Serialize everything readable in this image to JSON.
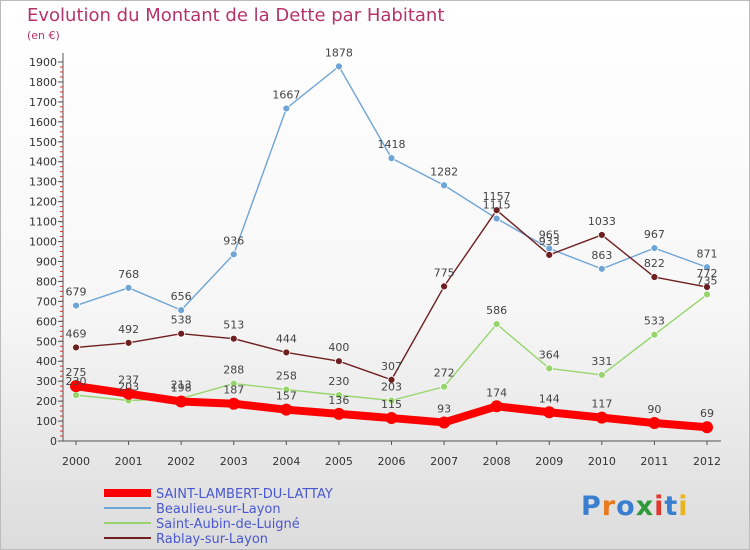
{
  "header": {
    "title": "Evolution du Montant de la Dette par Habitant",
    "unit": "(en €)"
  },
  "logo": {
    "text": "Proxiti"
  },
  "chart_data": {
    "type": "line",
    "title": "Evolution du Montant de la Dette par Habitant",
    "subtitle": "(en €)",
    "xlabel": "",
    "ylabel": "",
    "x": [
      "2000",
      "2001",
      "2002",
      "2003",
      "2004",
      "2005",
      "2006",
      "2007",
      "2008",
      "2009",
      "2010",
      "2011",
      "2012"
    ],
    "ylim": [
      0,
      1900
    ],
    "yticks": [
      0,
      100,
      200,
      300,
      400,
      500,
      600,
      700,
      800,
      900,
      1000,
      1100,
      1200,
      1300,
      1400,
      1500,
      1600,
      1700,
      1800,
      1900
    ],
    "grid": false,
    "legend_position": "bottom-left",
    "series": [
      {
        "name": "SAINT-LAMBERT-DU-LATTAY",
        "color": "#ff0000",
        "values": [
          275,
          237,
          198,
          187,
          157,
          136,
          115,
          93,
          174,
          144,
          117,
          90,
          69
        ]
      },
      {
        "name": "Beaulieu-sur-Layon",
        "color": "#6fa4d6",
        "values": [
          679,
          768,
          656,
          936,
          1667,
          1878,
          1418,
          1282,
          1115,
          965,
          863,
          967,
          871
        ]
      },
      {
        "name": "Saint-Aubin-de-Luigné",
        "color": "#96d56c",
        "values": [
          230,
          203,
          213,
          288,
          258,
          230,
          203,
          272,
          586,
          364,
          331,
          533,
          735
        ]
      },
      {
        "name": "Rablay-sur-Layon",
        "color": "#6e1f1f",
        "values": [
          469,
          492,
          538,
          513,
          444,
          400,
          307,
          775,
          1157,
          933,
          1033,
          822,
          772
        ]
      }
    ]
  }
}
